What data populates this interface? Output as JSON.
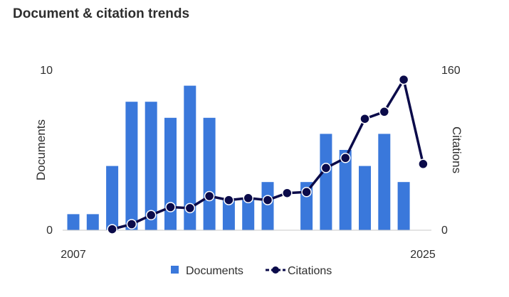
{
  "title": "Document & citation trends",
  "chart_data": {
    "type": "bar+line",
    "title": "Document & citation trends",
    "x": [
      2007,
      2008,
      2009,
      2010,
      2011,
      2012,
      2013,
      2014,
      2015,
      2016,
      2017,
      2018,
      2019,
      2020,
      2021,
      2022,
      2023,
      2024,
      2025
    ],
    "x_tick_labels": [
      "2007",
      "2025"
    ],
    "series": [
      {
        "name": "Documents",
        "type": "bar",
        "axis": "left",
        "color": "#3a78db",
        "values": [
          1,
          1,
          4,
          8,
          8,
          7,
          9,
          7,
          2,
          2,
          3,
          0,
          3,
          6,
          5,
          4,
          6,
          3,
          null
        ]
      },
      {
        "name": "Citations",
        "type": "line",
        "axis": "right",
        "color": "#0b0b4a",
        "values": [
          null,
          null,
          1,
          6,
          15,
          23,
          22,
          34,
          30,
          32,
          30,
          37,
          38,
          62,
          72,
          111,
          118,
          150,
          66
        ]
      }
    ],
    "y_left": {
      "label": "Documents",
      "ylim": [
        0,
        10
      ],
      "ticks": [
        "0",
        "10"
      ]
    },
    "y_right": {
      "label": "Citations",
      "ylim": [
        0,
        160
      ],
      "ticks": [
        "0",
        "160"
      ]
    },
    "legend": {
      "position": "bottom",
      "entries": [
        "Documents",
        "Citations"
      ]
    },
    "grid": false
  }
}
